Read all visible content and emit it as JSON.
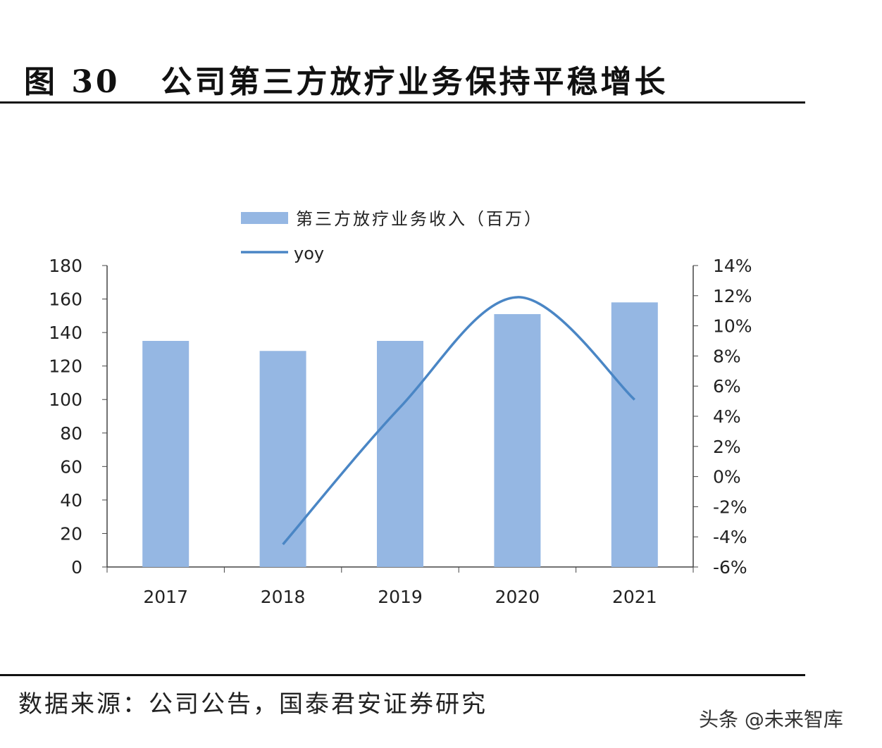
{
  "title": "图 30   公司第三方放疗业务保持平稳增长",
  "source": "数据来源：公司公告，国泰君安证券研究",
  "watermark": "头条 @未来智库",
  "colors": {
    "bar": "#95b7e3",
    "line": "#4a86c5"
  },
  "chart_data": {
    "type": "bar",
    "categories": [
      "2017",
      "2018",
      "2019",
      "2020",
      "2021"
    ],
    "series": [
      {
        "name": "第三方放疗业务收入（百万）",
        "type": "bar",
        "axis": "left",
        "values": [
          135,
          129,
          135,
          151,
          158
        ]
      },
      {
        "name": "yoy",
        "type": "line",
        "axis": "right",
        "values": [
          null,
          -4.5,
          4.6,
          11.9,
          5.1
        ]
      }
    ],
    "ylim": [
      0,
      180
    ],
    "yticks": [
      0,
      20,
      40,
      60,
      80,
      100,
      120,
      140,
      160,
      180
    ],
    "y2lim": [
      -6,
      14
    ],
    "y2ticks": [
      "-6%",
      "-4%",
      "-2%",
      "0%",
      "2%",
      "4%",
      "6%",
      "8%",
      "10%",
      "12%",
      "14%"
    ],
    "legend": "top-center",
    "grid": false
  }
}
